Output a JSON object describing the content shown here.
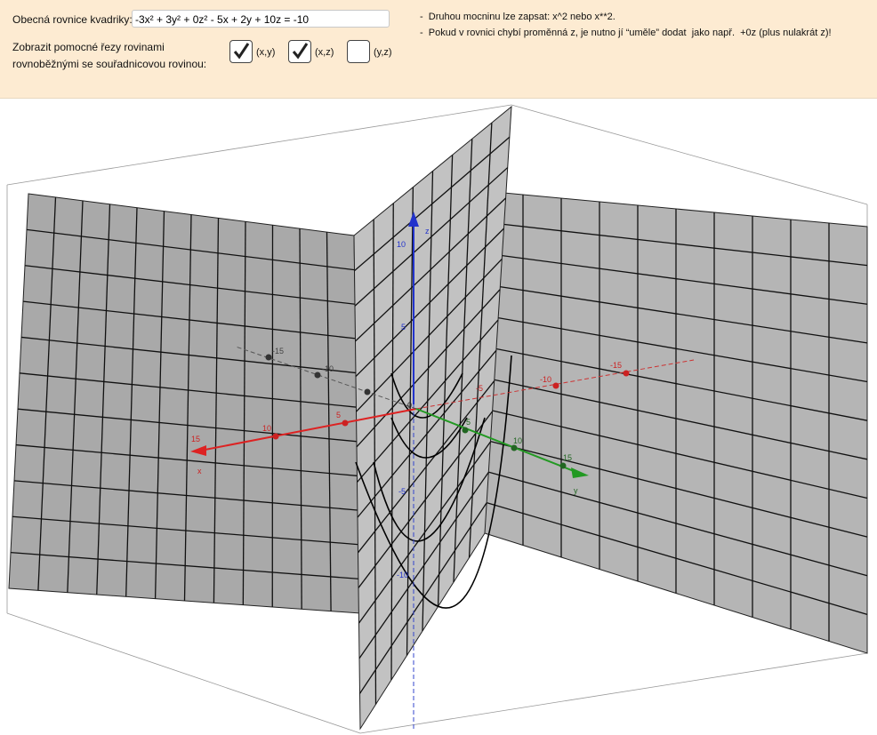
{
  "input": {
    "label": "Obecná rovnice kvadriky:",
    "value": "-3x² + 3y² + 0z² - 5x + 2y + 10z = -10"
  },
  "sections": {
    "lines": [
      "Zobrazit pomocné řezy rovinami",
      "rovnoběžnými se souřadnicovou rovinou:"
    ],
    "checkboxes": [
      {
        "label": "(x,y)",
        "checked": true
      },
      {
        "label": "(x,z)",
        "checked": true
      },
      {
        "label": "(y,z)",
        "checked": false
      }
    ]
  },
  "notes": [
    "-  Druhou mocninu lze zapsat: x^2 nebo x**2.",
    "-  Pokud v rovnici chybí proměnná z, je nutno jí “uměle” dodat  jako např.  +0z (plus nulakrát z)!"
  ],
  "view": {
    "x_axis": {
      "name": "x",
      "ticks": [
        "15",
        "10",
        "5",
        "-5",
        "-10",
        "-15"
      ]
    },
    "y_axis": {
      "name": "y",
      "ticks": [
        "-15",
        "-10",
        "5",
        "10",
        "15"
      ]
    },
    "z_axis": {
      "name": "z",
      "ticks": [
        "10",
        "5",
        "-5",
        "-10"
      ]
    },
    "origin": "0"
  }
}
